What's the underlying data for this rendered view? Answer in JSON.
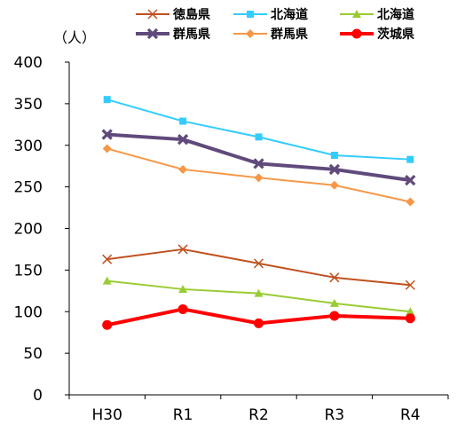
{
  "chart_data": {
    "type": "line",
    "unit_label": "（人）",
    "categories": [
      "H30",
      "R1",
      "R2",
      "R3",
      "R4"
    ],
    "ylim": [
      0,
      400
    ],
    "y_ticks": [
      0,
      50,
      100,
      150,
      200,
      250,
      300,
      350,
      400
    ],
    "grid": false,
    "legend_position": "top",
    "series": [
      {
        "name": "徳島県",
        "color": "#C0501F",
        "marker": "x",
        "line_width": 2,
        "values": [
          163,
          175,
          158,
          141,
          132
        ]
      },
      {
        "name": "北海道",
        "color": "#33CCFF",
        "marker": "square",
        "line_width": 2,
        "values": [
          355,
          329,
          310,
          288,
          283
        ]
      },
      {
        "name": "北海道",
        "color": "#99CC33",
        "marker": "triangle",
        "line_width": 2,
        "values": [
          137,
          127,
          122,
          110,
          100
        ]
      },
      {
        "name": "群馬県",
        "color": "#604A7B",
        "marker": "x-bold",
        "line_width": 4,
        "values": [
          313,
          307,
          278,
          271,
          258
        ]
      },
      {
        "name": "群馬県",
        "color": "#F79646",
        "marker": "diamond",
        "line_width": 2,
        "values": [
          296,
          271,
          261,
          252,
          232
        ]
      },
      {
        "name": "茨城県",
        "color": "#FF0000",
        "marker": "circle",
        "line_width": 4,
        "values": [
          84,
          103,
          86,
          95,
          92
        ]
      }
    ]
  }
}
